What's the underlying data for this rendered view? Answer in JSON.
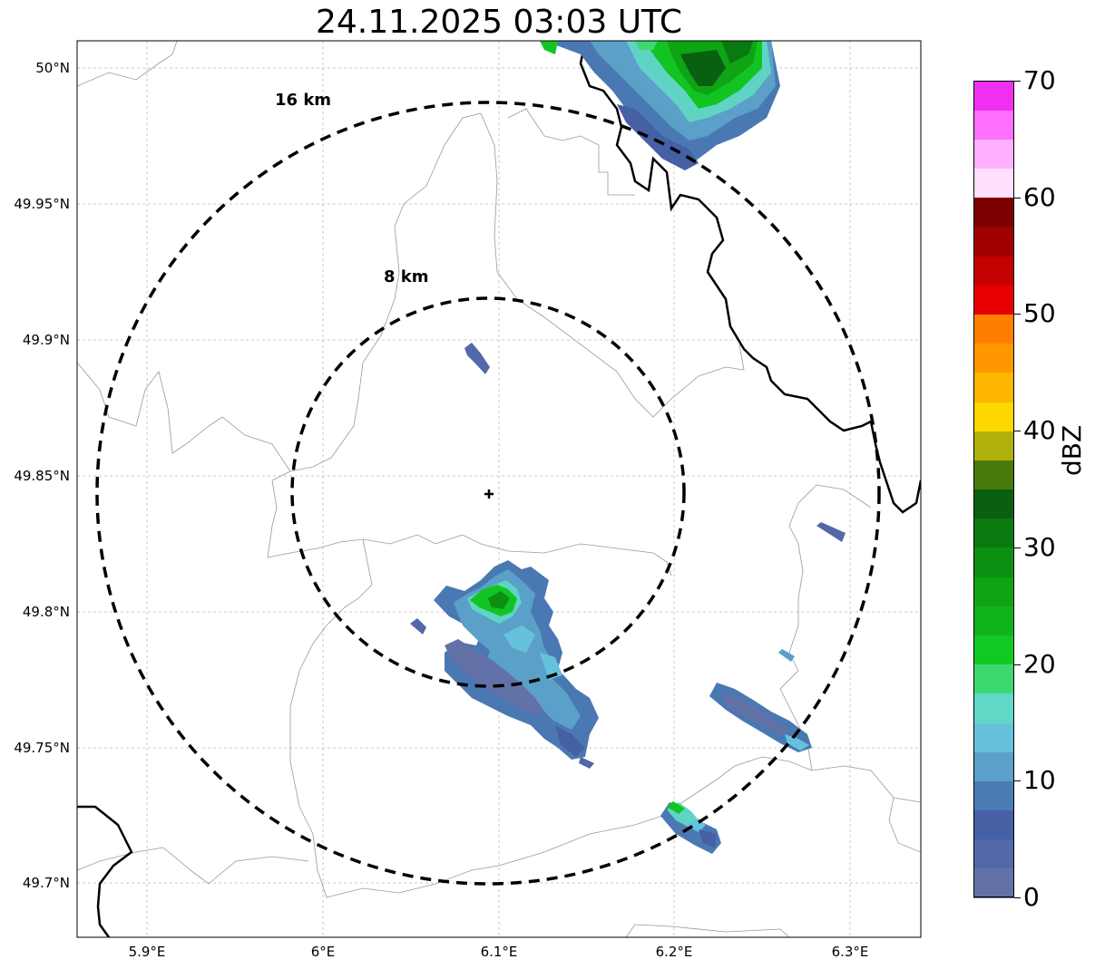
{
  "title": "24.11.2025 03:03 UTC",
  "lat_labels": [
    "50°N",
    "49.95°N",
    "49.9°N",
    "49.85°N",
    "49.8°N",
    "49.75°N",
    "49.7°N"
  ],
  "lon_labels": [
    "5.9°E",
    "6°E",
    "6.1°E",
    "6.2°E",
    "6.3°E"
  ],
  "rings": {
    "inner": "8 km",
    "outer": "16 km"
  },
  "colorbar": {
    "label": "dBZ",
    "tick_labels": [
      "0",
      "10",
      "20",
      "30",
      "40",
      "50",
      "60",
      "70"
    ],
    "colors": [
      "#6272a8",
      "#5268a8",
      "#4660a6",
      "#4c7cb4",
      "#5aa0c8",
      "#66c2dc",
      "#60d8c8",
      "#3ed870",
      "#12c822",
      "#10b41a",
      "#0ea414",
      "#0c9012",
      "#0a7a10",
      "#086010",
      "#4a7a0c",
      "#b0b00a",
      "#ffd800",
      "#ffb600",
      "#ff9800",
      "#ff7e00",
      "#e80000",
      "#c40000",
      "#a00000",
      "#7c0000",
      "#ffe0ff",
      "#ffb0ff",
      "#ff70ff",
      "#f030f0"
    ]
  },
  "legend_colors": {
    "borders": "#000000",
    "admin": "#999999",
    "grid": "#bbbbbb"
  }
}
